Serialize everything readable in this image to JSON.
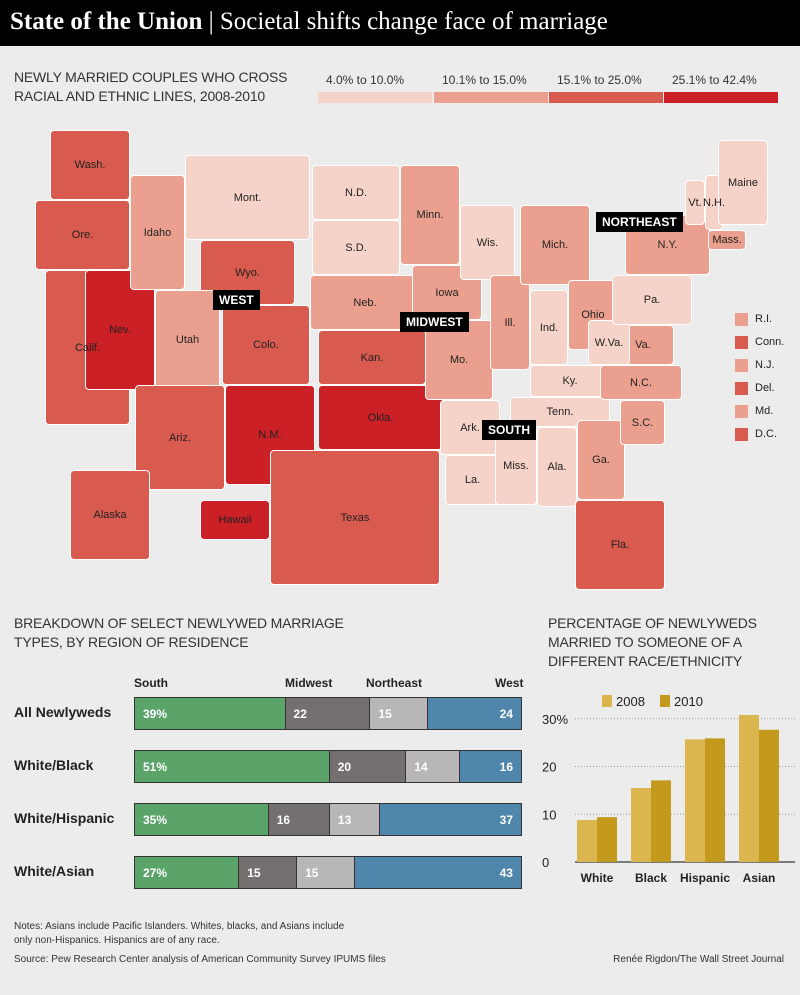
{
  "header": {
    "title": "State of the Union",
    "separator": "|",
    "subtitle": "Societal shifts change face of marriage"
  },
  "map": {
    "title_line1": "NEWLY MARRIED COUPLES WHO CROSS",
    "title_line2": "RACIAL AND ETHNIC LINES, 2008-2010",
    "legend": [
      {
        "label": "4.0% to 10.0%",
        "color": "#f6d3c8"
      },
      {
        "label": "10.1% to 15.0%",
        "color": "#eba08f"
      },
      {
        "label": "15.1% to 25.0%",
        "color": "#d95a4e"
      },
      {
        "label": "25.1% to 42.4%",
        "color": "#cc2027"
      }
    ],
    "regions": [
      "WEST",
      "MIDWEST",
      "SOUTH",
      "NORTHEAST"
    ],
    "states": {
      "Wash.": 3,
      "Ore.": 3,
      "Calif.": 3,
      "Nev.": 4,
      "Idaho": 2,
      "Mont.": 1,
      "Wyo.": 3,
      "Utah": 2,
      "Colo.": 3,
      "Ariz.": 3,
      "N.M.": 4,
      "N.D.": 1,
      "S.D.": 1,
      "Neb.": 2,
      "Kan.": 3,
      "Okla.": 4,
      "Texas": 3,
      "Minn.": 2,
      "Iowa": 2,
      "Mo.": 2,
      "Wis.": 1,
      "Ill.": 2,
      "Mich.": 2,
      "Ind.": 1,
      "Ohio": 2,
      "Ky.": 1,
      "Tenn.": 1,
      "Ark.": 1,
      "La.": 1,
      "Miss.": 1,
      "Ala.": 1,
      "Ga.": 2,
      "Fla.": 3,
      "S.C.": 2,
      "N.C.": 2,
      "Va.": 2,
      "W.Va.": 1,
      "Pa.": 1,
      "N.Y.": 2,
      "Vt.": 1,
      "N.H.": 1,
      "Maine": 1,
      "Mass.": 2,
      "Alaska": 3,
      "Hawaii": 4
    },
    "small_states": [
      {
        "label": "R.I.",
        "cat": 2
      },
      {
        "label": "Conn.",
        "cat": 3
      },
      {
        "label": "N.J.",
        "cat": 2
      },
      {
        "label": "Del.",
        "cat": 3
      },
      {
        "label": "Md.",
        "cat": 2
      },
      {
        "label": "D.C.",
        "cat": 3
      }
    ]
  },
  "chart_data": [
    {
      "type": "bar",
      "stacked": true,
      "title_line1": "BREAKDOWN OF SELECT NEWLYWED MARRIAGE",
      "title_line2": "TYPES, BY REGION OF RESIDENCE",
      "categories": [
        "All Newlyweds",
        "White/Black",
        "White/Hispanic",
        "White/Asian"
      ],
      "series": [
        {
          "name": "South",
          "color": "#5aa46a",
          "values": [
            39,
            51,
            35,
            27
          ]
        },
        {
          "name": "Midwest",
          "color": "#757070",
          "values": [
            22,
            20,
            16,
            15
          ]
        },
        {
          "name": "Northeast",
          "color": "#b9b7b5",
          "values": [
            15,
            14,
            13,
            15
          ]
        },
        {
          "name": "West",
          "color": "#4f86ac",
          "values": [
            24,
            16,
            37,
            43
          ]
        }
      ],
      "first_suffix": "%"
    },
    {
      "type": "bar",
      "title_line1": "PERCENTAGE OF NEWLYWEDS",
      "title_line2": "MARRIED TO SOMEONE OF A",
      "title_line3": "DIFFERENT RACE/ETHNICITY",
      "categories": [
        "White",
        "Black",
        "Hispanic",
        "Asian"
      ],
      "series": [
        {
          "name": "2008",
          "color": "#dbb64f",
          "values": [
            8.8,
            15.5,
            25.7,
            30.8
          ]
        },
        {
          "name": "2010",
          "color": "#c49a1c",
          "values": [
            9.4,
            17.1,
            25.9,
            27.7
          ]
        }
      ],
      "ylim": [
        0,
        31
      ],
      "yticks": [
        "0",
        "10",
        "20",
        "30%"
      ],
      "grid": true,
      "legend": "top"
    }
  ],
  "notes": {
    "line1": "Notes: Asians include Pacific Islanders. Whites, blacks, and Asians include",
    "line2": "only non-Hispanics. Hispanics are of any race.",
    "source": "Source: Pew Research Center analysis of American Community Survey IPUMS files",
    "credit": "Renée Rigdon/The Wall Street Journal"
  }
}
